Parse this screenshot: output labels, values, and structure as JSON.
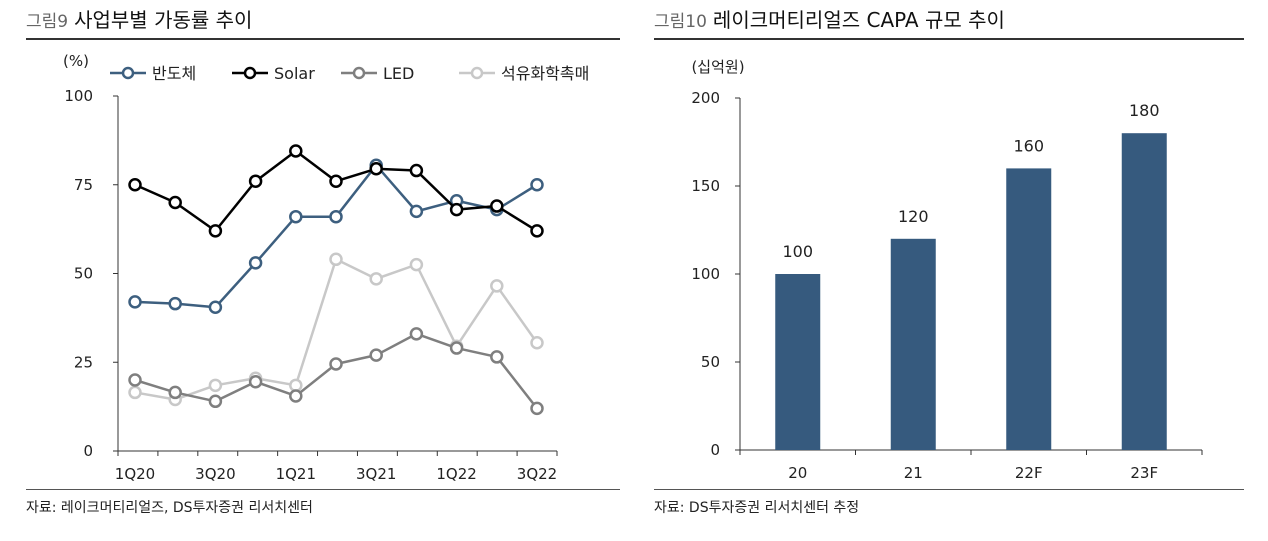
{
  "charts": [
    {
      "fig_label": "그림9",
      "title": "사업부별 가동률 추이",
      "source": "자료: 레이크머티리얼즈, DS투자증권 리서치센터",
      "chart_data": {
        "type": "line",
        "title": "사업부별 가동률 추이",
        "ylabel": "(%)",
        "xlabel": "",
        "ylim": [
          0,
          100
        ],
        "yticks": [
          0,
          25,
          50,
          75,
          100
        ],
        "categories": [
          "1Q20",
          "2Q20",
          "3Q20",
          "4Q20",
          "1Q21",
          "2Q21",
          "3Q21",
          "4Q21",
          "1Q22",
          "2Q22",
          "3Q22"
        ],
        "xtick_labels": [
          "1Q20",
          "",
          "3Q20",
          "",
          "1Q21",
          "",
          "3Q21",
          "",
          "1Q22",
          "",
          "3Q22"
        ],
        "legend_position": "top",
        "series": [
          {
            "name": "반도체",
            "color": "#3d5f7f",
            "values": [
              42,
              41.5,
              40.5,
              53,
              66,
              66,
              80.5,
              67.5,
              70.5,
              68,
              75
            ]
          },
          {
            "name": "Solar",
            "color": "#000000",
            "values": [
              75,
              70,
              62,
              76,
              84.5,
              76,
              79.5,
              79,
              68,
              69,
              62
            ]
          },
          {
            "name": "LED",
            "color": "#7f7f7f",
            "values": [
              20,
              16.5,
              14,
              19.5,
              15.5,
              24.5,
              27,
              33,
              29,
              26.5,
              12
            ]
          },
          {
            "name": "석유화학촉매",
            "color": "#c8c8c8",
            "values": [
              16.5,
              14.5,
              18.5,
              20.5,
              18.5,
              54,
              48.5,
              52.5,
              29.5,
              46.5,
              30.5
            ]
          }
        ]
      }
    },
    {
      "fig_label": "그림10",
      "title": "레이크머티리얼즈 CAPA 규모 추이",
      "source": "자료: DS투자증권 리서치센터 추정",
      "chart_data": {
        "type": "bar",
        "title": "레이크머티리얼즈 CAPA 규모 추이",
        "ylabel": "(십억원)",
        "xlabel": "",
        "ylim": [
          0,
          200
        ],
        "yticks": [
          0,
          50,
          100,
          150,
          200
        ],
        "categories": [
          "20",
          "21",
          "22F",
          "23F"
        ],
        "values": [
          100,
          120,
          160,
          180
        ],
        "data_labels": [
          "100",
          "120",
          "160",
          "180"
        ],
        "bar_color": "#365a7e"
      }
    }
  ]
}
